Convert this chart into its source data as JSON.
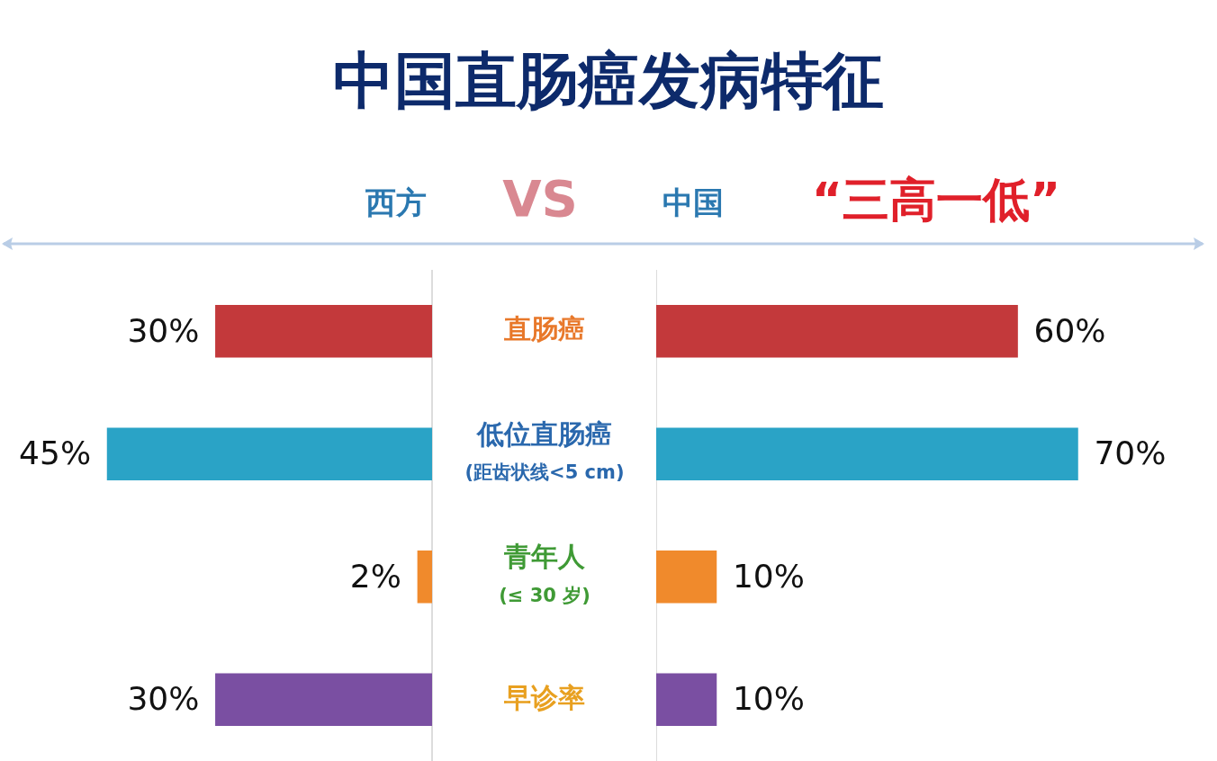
{
  "chart_data": [
    {
      "type": "bar",
      "orientation": "horizontal",
      "title": "中国直肠癌发病特征",
      "categories": [
        "直肠癌",
        "低位直肠癌\n(距齿状线<5 cm)",
        "青年人\n(≤ 30 岁)",
        "早诊率"
      ],
      "tick_labels": "y",
      "colors": [
        "#c3393b",
        "#2aa3c6",
        "#f08a2c",
        "#7a4fa2"
      ],
      "series": [
        {
          "name": "西方",
          "values": [
            30,
            45,
            2,
            30
          ],
          "value_labels": [
            "30%",
            "45%",
            "2%",
            "30%"
          ]
        }
      ]
    },
    {
      "type": "bar",
      "orientation": "horizontal",
      "categories": [
        null,
        null,
        null,
        null
      ],
      "tick_labels": false,
      "colors": [
        "#c3393b",
        "#2aa3c6",
        "#f08a2c",
        "#7a4fa2"
      ],
      "annotations": [
        "VS",
        "“三高一低”"
      ],
      "series": [
        {
          "name": "中国",
          "values": [
            60,
            70,
            10,
            10
          ],
          "value_labels": [
            "60%",
            "70%",
            "10%",
            "10%"
          ]
        }
      ]
    }
  ]
}
